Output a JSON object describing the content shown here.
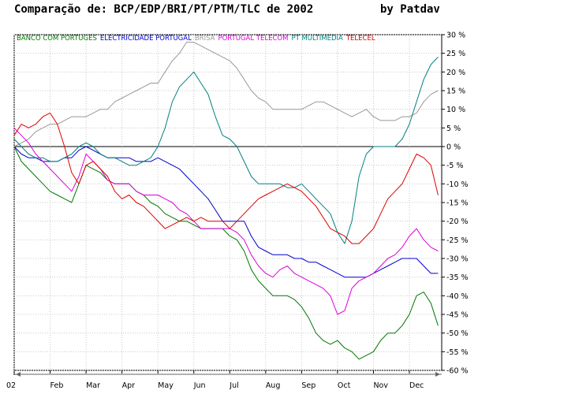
{
  "chart_data": {
    "type": "line",
    "title": "Comparação de: BCP/EDP/BRI/PT/PTM/TLC de 2002",
    "author": "by Patdav",
    "y_unit": "%",
    "ylim": [
      -60,
      30
    ],
    "y_ticks": [
      30,
      25,
      20,
      15,
      10,
      5,
      0,
      -5,
      -10,
      -15,
      -20,
      -25,
      -30,
      -35,
      -40,
      -45,
      -50,
      -55,
      -60
    ],
    "x_tick_labels": [
      "02",
      "Feb",
      "Mar",
      "Apr",
      "May",
      "Jun",
      "Jul",
      "Aug",
      "Sep",
      "Oct",
      "Nov",
      "Dec"
    ],
    "x_tick_positions": [
      0,
      1,
      2,
      3,
      4,
      5,
      6,
      7,
      8,
      9,
      10,
      11
    ],
    "xlim": [
      0,
      11.9
    ],
    "grid": true,
    "legend_placement": "top",
    "series": [
      {
        "name": "BANCO COM PORTUGES",
        "color": "#007700",
        "x": [
          0,
          0.2,
          0.4,
          0.6,
          0.8,
          1.0,
          1.2,
          1.4,
          1.6,
          1.8,
          2.0,
          2.2,
          2.4,
          2.6,
          2.8,
          3.0,
          3.2,
          3.4,
          3.6,
          3.8,
          4.0,
          4.2,
          4.4,
          4.6,
          4.8,
          5.0,
          5.2,
          5.4,
          5.6,
          5.8,
          6.0,
          6.2,
          6.4,
          6.6,
          6.8,
          7.0,
          7.2,
          7.4,
          7.6,
          7.8,
          8.0,
          8.2,
          8.4,
          8.6,
          8.8,
          9.0,
          9.2,
          9.4,
          9.6,
          9.8,
          10.0,
          10.2,
          10.4,
          10.6,
          10.8,
          11.0,
          11.2,
          11.4,
          11.6,
          11.8
        ],
        "values": [
          0,
          -4,
          -6,
          -8,
          -10,
          -12,
          -13,
          -14,
          -15,
          -10,
          -5,
          -6,
          -7,
          -9,
          -10,
          -10,
          -10,
          -12,
          -13,
          -15,
          -16,
          -18,
          -19,
          -20,
          -20,
          -21,
          -22,
          -22,
          -22,
          -22,
          -24,
          -25,
          -28,
          -33,
          -36,
          -38,
          -40,
          -40,
          -40,
          -41,
          -43,
          -46,
          -50,
          -52,
          -53,
          -52,
          -54,
          -55,
          -57,
          -56,
          -55,
          -52,
          -50,
          -50,
          -48,
          -45,
          -40,
          -39,
          -42,
          -48
        ]
      },
      {
        "name": "ELECTRICIDADE PORTUGAL",
        "color": "#0000cc",
        "x": [
          0,
          0.2,
          0.4,
          0.6,
          0.8,
          1.0,
          1.2,
          1.4,
          1.6,
          1.8,
          2.0,
          2.2,
          2.4,
          2.6,
          2.8,
          3.0,
          3.2,
          3.4,
          3.6,
          3.8,
          4.0,
          4.2,
          4.4,
          4.6,
          4.8,
          5.0,
          5.2,
          5.4,
          5.6,
          5.8,
          6.0,
          6.2,
          6.4,
          6.6,
          6.8,
          7.0,
          7.2,
          7.4,
          7.6,
          7.8,
          8.0,
          8.2,
          8.4,
          8.6,
          8.8,
          9.0,
          9.2,
          9.4,
          9.6,
          9.8,
          10.0,
          10.2,
          10.4,
          10.6,
          10.8,
          11.0,
          11.2,
          11.4,
          11.6,
          11.8
        ],
        "values": [
          0,
          -2,
          -3,
          -3,
          -4,
          -4,
          -4,
          -3,
          -3,
          -1,
          0,
          -1,
          -2,
          -3,
          -3,
          -3,
          -3,
          -4,
          -4,
          -4,
          -3,
          -4,
          -5,
          -6,
          -8,
          -10,
          -12,
          -14,
          -17,
          -20,
          -20,
          -20,
          -20,
          -24,
          -27,
          -28,
          -29,
          -29,
          -29,
          -30,
          -30,
          -31,
          -31,
          -32,
          -33,
          -34,
          -35,
          -35,
          -35,
          -35,
          -34,
          -33,
          -32,
          -31,
          -30,
          -30,
          -30,
          -32,
          -34,
          -34
        ]
      },
      {
        "name": "BRISA",
        "color": "#999999",
        "x": [
          0,
          0.2,
          0.4,
          0.6,
          0.8,
          1.0,
          1.2,
          1.4,
          1.6,
          1.8,
          2.0,
          2.2,
          2.4,
          2.6,
          2.8,
          3.0,
          3.2,
          3.4,
          3.6,
          3.8,
          4.0,
          4.2,
          4.4,
          4.6,
          4.8,
          5.0,
          5.2,
          5.4,
          5.6,
          5.8,
          6.0,
          6.2,
          6.4,
          6.6,
          6.8,
          7.0,
          7.2,
          7.4,
          7.6,
          7.8,
          8.0,
          8.2,
          8.4,
          8.6,
          8.8,
          9.0,
          9.2,
          9.4,
          9.6,
          9.8,
          10.0,
          10.2,
          10.4,
          10.6,
          10.8,
          11.0,
          11.2,
          11.4,
          11.6,
          11.8
        ],
        "values": [
          0,
          1,
          2,
          4,
          5,
          6,
          6,
          7,
          8,
          8,
          8,
          9,
          10,
          10,
          12,
          13,
          14,
          15,
          16,
          17,
          17,
          20,
          23,
          25,
          28,
          28,
          27,
          26,
          25,
          24,
          23,
          21,
          18,
          15,
          13,
          12,
          10,
          10,
          10,
          10,
          10,
          11,
          12,
          12,
          11,
          10,
          9,
          8,
          9,
          10,
          8,
          7,
          7,
          7,
          8,
          8,
          9,
          12,
          14,
          15
        ]
      },
      {
        "name": "PORTUGAL TELECOM",
        "color": "#dd00dd",
        "x": [
          0,
          0.2,
          0.4,
          0.6,
          0.8,
          1.0,
          1.2,
          1.4,
          1.6,
          1.8,
          2.0,
          2.2,
          2.4,
          2.6,
          2.8,
          3.0,
          3.2,
          3.4,
          3.6,
          3.8,
          4.0,
          4.2,
          4.4,
          4.6,
          4.8,
          5.0,
          5.2,
          5.4,
          5.6,
          5.8,
          6.0,
          6.2,
          6.4,
          6.6,
          6.8,
          7.0,
          7.2,
          7.4,
          7.6,
          7.8,
          8.0,
          8.2,
          8.4,
          8.6,
          8.8,
          9.0,
          9.2,
          9.4,
          9.6,
          9.8,
          10.0,
          10.2,
          10.4,
          10.6,
          10.8,
          11.0,
          11.2,
          11.4,
          11.6,
          11.8
        ],
        "values": [
          5,
          3,
          1,
          -2,
          -4,
          -6,
          -8,
          -10,
          -12,
          -8,
          -2,
          -4,
          -6,
          -9,
          -10,
          -10,
          -10,
          -12,
          -13,
          -13,
          -13,
          -14,
          -15,
          -17,
          -18,
          -20,
          -22,
          -22,
          -22,
          -22,
          -22,
          -23,
          -25,
          -29,
          -32,
          -34,
          -35,
          -33,
          -32,
          -34,
          -35,
          -36,
          -37,
          -38,
          -40,
          -45,
          -44,
          -38,
          -36,
          -35,
          -34,
          -32,
          -30,
          -29,
          -27,
          -24,
          -22,
          -25,
          -27,
          -28
        ]
      },
      {
        "name": "PT MULTIMEDIA",
        "color": "#008080",
        "x": [
          0,
          0.2,
          0.4,
          0.6,
          0.8,
          1.0,
          1.2,
          1.4,
          1.6,
          1.8,
          2.0,
          2.2,
          2.4,
          2.6,
          2.8,
          3.0,
          3.2,
          3.4,
          3.6,
          3.8,
          4.0,
          4.2,
          4.4,
          4.6,
          4.8,
          5.0,
          5.2,
          5.4,
          5.6,
          5.8,
          6.0,
          6.2,
          6.4,
          6.6,
          6.8,
          7.0,
          7.2,
          7.4,
          7.6,
          7.8,
          8.0,
          8.2,
          8.4,
          8.6,
          8.8,
          9.0,
          9.2,
          9.4,
          9.6,
          9.8,
          10.0,
          10.2,
          10.4,
          10.6,
          10.8,
          11.0,
          11.2,
          11.4,
          11.6,
          11.8
        ],
        "values": [
          2,
          0,
          -2,
          -3,
          -3,
          -4,
          -4,
          -3,
          -2,
          0,
          1,
          0,
          -2,
          -3,
          -3,
          -4,
          -5,
          -5,
          -4,
          -3,
          0,
          5,
          12,
          16,
          18,
          20,
          17,
          14,
          8,
          3,
          2,
          0,
          -4,
          -8,
          -10,
          -10,
          -10,
          -10,
          -11,
          -11,
          -10,
          -12,
          -14,
          -16,
          -18,
          -23,
          -26,
          -20,
          -8,
          -2,
          0,
          0,
          0,
          0,
          2,
          6,
          12,
          18,
          22,
          24
        ]
      },
      {
        "name": "TELECEL",
        "color": "#dd0000",
        "x": [
          0,
          0.2,
          0.4,
          0.6,
          0.8,
          1.0,
          1.2,
          1.4,
          1.6,
          1.8,
          2.0,
          2.2,
          2.4,
          2.6,
          2.8,
          3.0,
          3.2,
          3.4,
          3.6,
          3.8,
          4.0,
          4.2,
          4.4,
          4.6,
          4.8,
          5.0,
          5.2,
          5.4,
          5.6,
          5.8,
          6.0,
          6.2,
          6.4,
          6.6,
          6.8,
          7.0,
          7.2,
          7.4,
          7.6,
          7.8,
          8.0,
          8.2,
          8.4,
          8.6,
          8.8,
          9.0,
          9.2,
          9.4,
          9.6,
          9.8,
          10.0,
          10.2,
          10.4,
          10.6,
          10.8,
          11.0,
          11.2,
          11.4,
          11.6,
          11.8
        ],
        "values": [
          3,
          6,
          5,
          6,
          8,
          9,
          6,
          0,
          -7,
          -10,
          -5,
          -4,
          -6,
          -8,
          -12,
          -14,
          -13,
          -15,
          -16,
          -18,
          -20,
          -22,
          -21,
          -20,
          -19,
          -20,
          -19,
          -20,
          -20,
          -20,
          -22,
          -20,
          -18,
          -16,
          -14,
          -13,
          -12,
          -11,
          -10,
          -11,
          -12,
          -14,
          -16,
          -19,
          -22,
          -23,
          -24,
          -26,
          -26,
          -24,
          -22,
          -18,
          -14,
          -12,
          -10,
          -6,
          -2,
          -3,
          -5,
          -13
        ]
      }
    ]
  }
}
